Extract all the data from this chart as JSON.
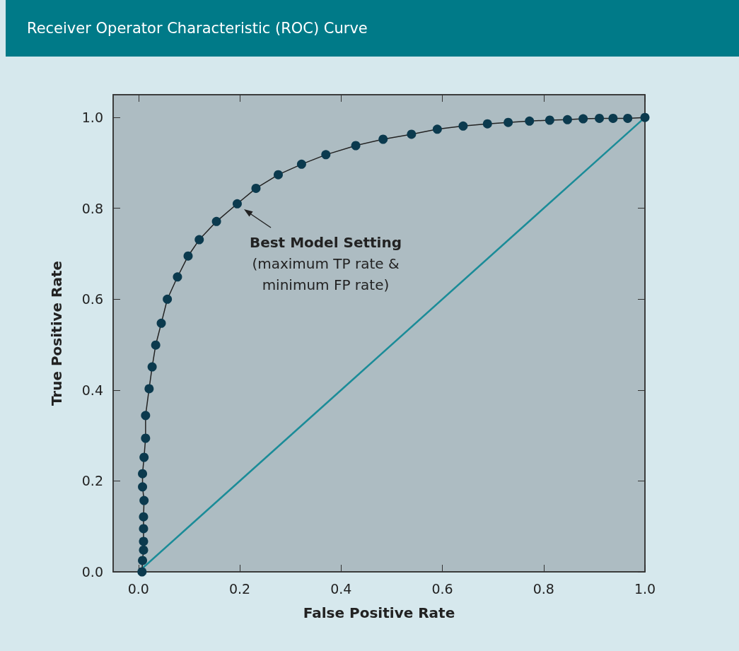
{
  "chart_data": {
    "type": "line",
    "title": "Receiver Operator Characteristic (ROC) Curve",
    "xlabel": "False Positive Rate",
    "ylabel": "True Positive Rate",
    "xlim": [
      -0.05,
      1.0
    ],
    "ylim": [
      0,
      1.05
    ],
    "xticks": [
      {
        "value": 0,
        "label": "0.0"
      },
      {
        "value": 0.2,
        "label": "0.2"
      },
      {
        "value": 0.4,
        "label": "0.4"
      },
      {
        "value": 0.6,
        "label": "0.6"
      },
      {
        "value": 0.8,
        "label": "0.8"
      },
      {
        "value": 1,
        "label": "1.0"
      }
    ],
    "yticks": [
      {
        "value": 0,
        "label": "0.0"
      },
      {
        "value": 0.2,
        "label": "0.2"
      },
      {
        "value": 0.4,
        "label": "0.4"
      },
      {
        "value": 0.6,
        "label": "0.6"
      },
      {
        "value": 0.8,
        "label": "0.8"
      },
      {
        "value": 1,
        "label": "1.0"
      }
    ],
    "grid": false,
    "series": [
      {
        "color": "#0b3a4e",
        "marker": "circle",
        "x": [
          0.007,
          0.008,
          0.01,
          0.01,
          0.01,
          0.01,
          0.011,
          0.008,
          0.008,
          0.011,
          0.014,
          0.014,
          0.021,
          0.027,
          0.034,
          0.045,
          0.057,
          0.077,
          0.098,
          0.12,
          0.154,
          0.195,
          0.232,
          0.276,
          0.322,
          0.37,
          0.429,
          0.483,
          0.539,
          0.59,
          0.641,
          0.689,
          0.73,
          0.772,
          0.812,
          0.847,
          0.878,
          0.91,
          0.937,
          0.966,
          1.0
        ],
        "values": [
          0,
          0.025,
          0.048,
          0.067,
          0.095,
          0.121,
          0.157,
          0.187,
          0.216,
          0.252,
          0.294,
          0.344,
          0.403,
          0.451,
          0.499,
          0.547,
          0.6,
          0.649,
          0.695,
          0.731,
          0.771,
          0.81,
          0.844,
          0.874,
          0.897,
          0.918,
          0.938,
          0.952,
          0.963,
          0.974,
          0.981,
          0.986,
          0.989,
          0.992,
          0.994,
          0.995,
          0.997,
          0.998,
          0.998,
          0.998,
          1
        ]
      },
      {
        "color": "#1b8c98",
        "marker": "none",
        "x": [
          0,
          1
        ],
        "values": [
          0,
          1
        ]
      }
    ],
    "annotations": [
      {
        "text": "Best Model Setting\n(maximum TP rate &\nminimum FP rate)",
        "x": 0.195,
        "y": 0.81
      }
    ]
  }
}
